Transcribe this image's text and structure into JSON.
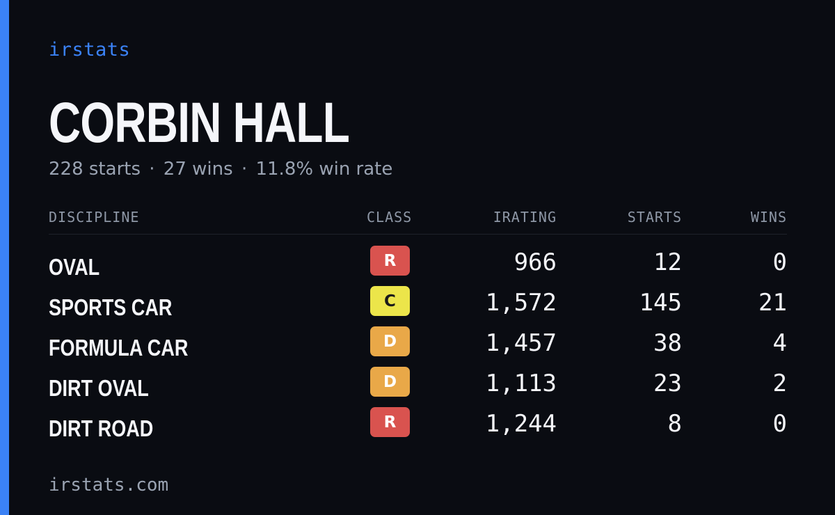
{
  "brand": "irstats",
  "driver": {
    "name": "CORBIN HALL"
  },
  "summary": {
    "starts": "228 starts",
    "wins": "27 wins",
    "win_rate": "11.8% win rate",
    "separator": "·"
  },
  "table": {
    "headers": {
      "discipline": "DISCIPLINE",
      "class": "CLASS",
      "irating": "IRATING",
      "starts": "STARTS",
      "wins": "WINS"
    },
    "rows": [
      {
        "discipline": "OVAL",
        "class": "R",
        "class_color": "#d9534f",
        "class_text_color": "#ffffff",
        "irating": "966",
        "starts": "12",
        "wins": "0"
      },
      {
        "discipline": "SPORTS CAR",
        "class": "C",
        "class_color": "#ece54a",
        "class_text_color": "#1a1a1a",
        "irating": "1,572",
        "starts": "145",
        "wins": "21"
      },
      {
        "discipline": "FORMULA CAR",
        "class": "D",
        "class_color": "#e9a848",
        "class_text_color": "#ffffff",
        "irating": "1,457",
        "starts": "38",
        "wins": "4"
      },
      {
        "discipline": "DIRT OVAL",
        "class": "D",
        "class_color": "#e9a848",
        "class_text_color": "#ffffff",
        "irating": "1,113",
        "starts": "23",
        "wins": "2"
      },
      {
        "discipline": "DIRT ROAD",
        "class": "R",
        "class_color": "#d9534f",
        "class_text_color": "#ffffff",
        "irating": "1,244",
        "starts": "8",
        "wins": "0"
      }
    ]
  },
  "footer": {
    "url": "irstats.com"
  },
  "colors": {
    "background": "#0a0c12",
    "accent": "#3b82f6",
    "text": "#f5f6fa",
    "muted": "#9aa3b2"
  }
}
